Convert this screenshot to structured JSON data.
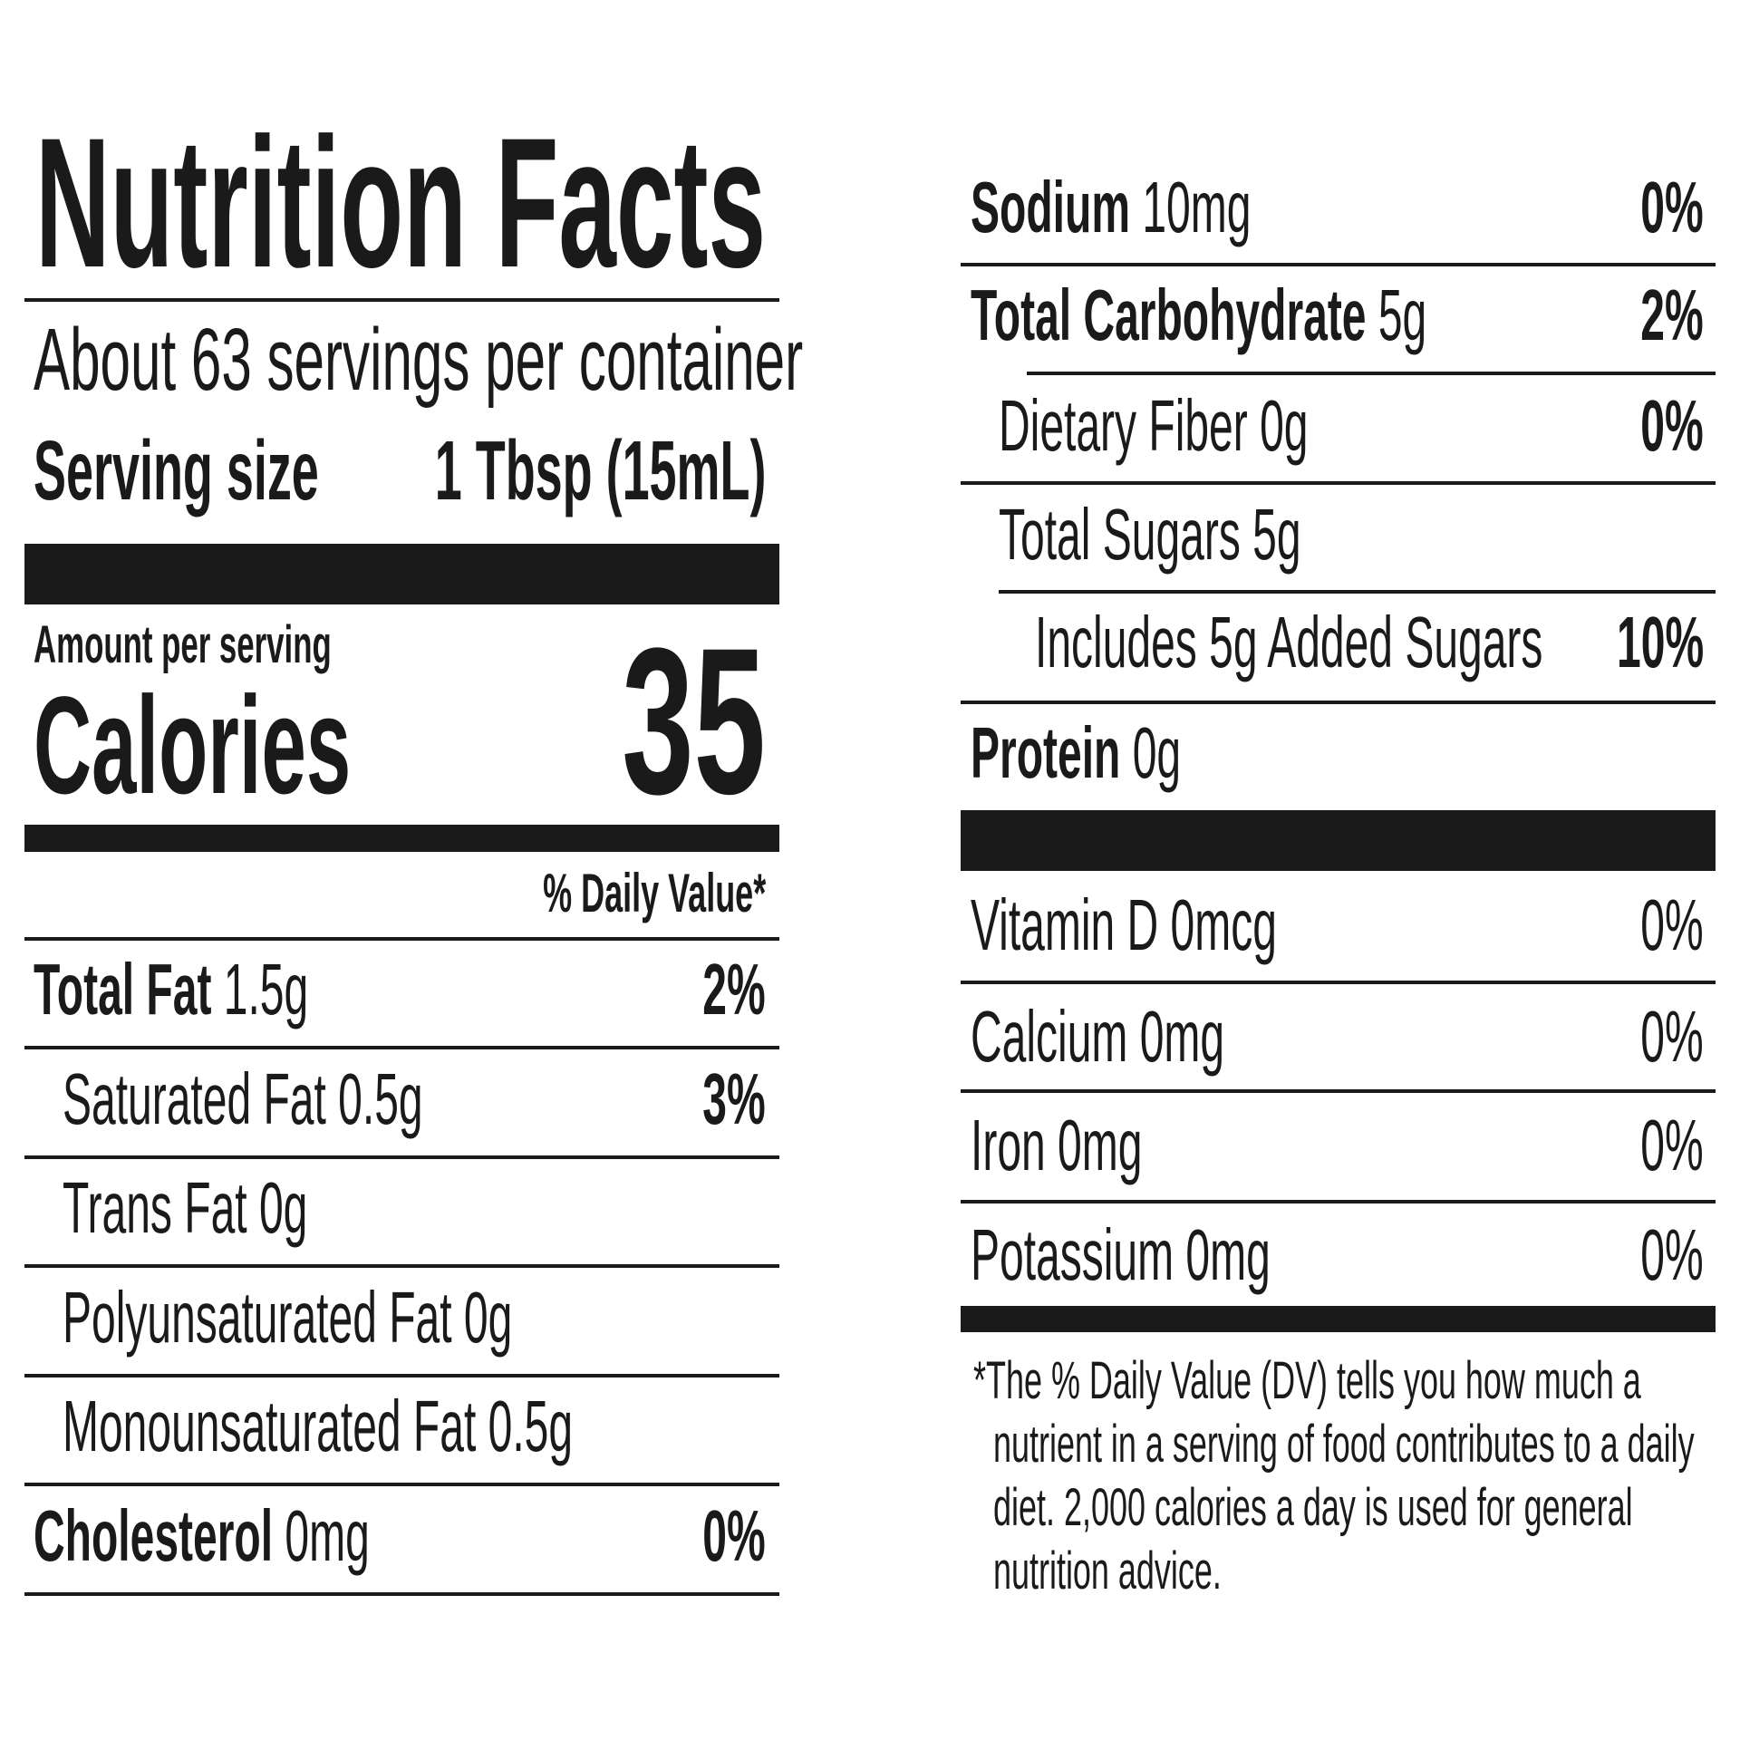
{
  "title": "Nutrition Facts",
  "servings_per_container": "About 63 servings per container",
  "serving_size": {
    "label": "Serving size",
    "value": "1 Tbsp (15mL)"
  },
  "amount_per_serving": "Amount per serving",
  "calories": {
    "label": "Calories",
    "value": "35"
  },
  "daily_value_header": "% Daily Value*",
  "left_rows": [
    {
      "name": "Total Fat",
      "amount": "1.5g",
      "dv": "2%",
      "bold": true,
      "indent": 0
    },
    {
      "name": "Saturated Fat",
      "amount": "0.5g",
      "dv": "3%",
      "bold": false,
      "indent": 1
    },
    {
      "name": "Trans Fat",
      "amount": "0g",
      "dv": "",
      "bold": false,
      "indent": 1
    },
    {
      "name": "Polyunsaturated Fat",
      "amount": "0g",
      "dv": "",
      "bold": false,
      "indent": 1
    },
    {
      "name": "Monounsaturated Fat",
      "amount": "0.5g",
      "dv": "",
      "bold": false,
      "indent": 1
    },
    {
      "name": "Cholesterol",
      "amount": "0mg",
      "dv": "0%",
      "bold": true,
      "indent": 0
    }
  ],
  "right_rows": [
    {
      "name": "Sodium",
      "amount": "10mg",
      "dv": "0%",
      "bold": true,
      "indent": 0,
      "dv_bold": true
    },
    {
      "name": "Total Carbohydrate",
      "amount": "5g",
      "dv": "2%",
      "bold": true,
      "indent": 0,
      "dv_bold": true
    },
    {
      "name": "Dietary Fiber",
      "amount": "0g",
      "dv": "0%",
      "bold": false,
      "indent": 1,
      "dv_bold": true
    },
    {
      "name": "Total Sugars",
      "amount": "5g",
      "dv": "",
      "bold": false,
      "indent": 1,
      "dv_bold": true
    },
    {
      "name": "Includes 5g Added Sugars",
      "amount": "",
      "dv": "10%",
      "bold": false,
      "indent": 2,
      "dv_bold": true
    },
    {
      "name": "Protein",
      "amount": "0g",
      "dv": "",
      "bold": true,
      "indent": 0,
      "dv_bold": true
    },
    {
      "name": "Vitamin D",
      "amount": "0mcg",
      "dv": "0%",
      "bold": false,
      "indent": 0,
      "dv_bold": false
    },
    {
      "name": "Calcium",
      "amount": "0mg",
      "dv": "0%",
      "bold": false,
      "indent": 0,
      "dv_bold": false
    },
    {
      "name": "Iron",
      "amount": "0mg",
      "dv": "0%",
      "bold": false,
      "indent": 0,
      "dv_bold": false
    },
    {
      "name": "Potassium",
      "amount": "0mg",
      "dv": "0%",
      "bold": false,
      "indent": 0,
      "dv_bold": false
    }
  ],
  "footnote_lines": [
    "*The % Daily Value (DV) tells you how much a",
    "nutrient in a serving of food contributes to a daily",
    "diet. 2,000 calories a day is used for general",
    "nutrition advice."
  ],
  "colors": {
    "ink": "#1a1a1a",
    "background": "#ffffff"
  }
}
